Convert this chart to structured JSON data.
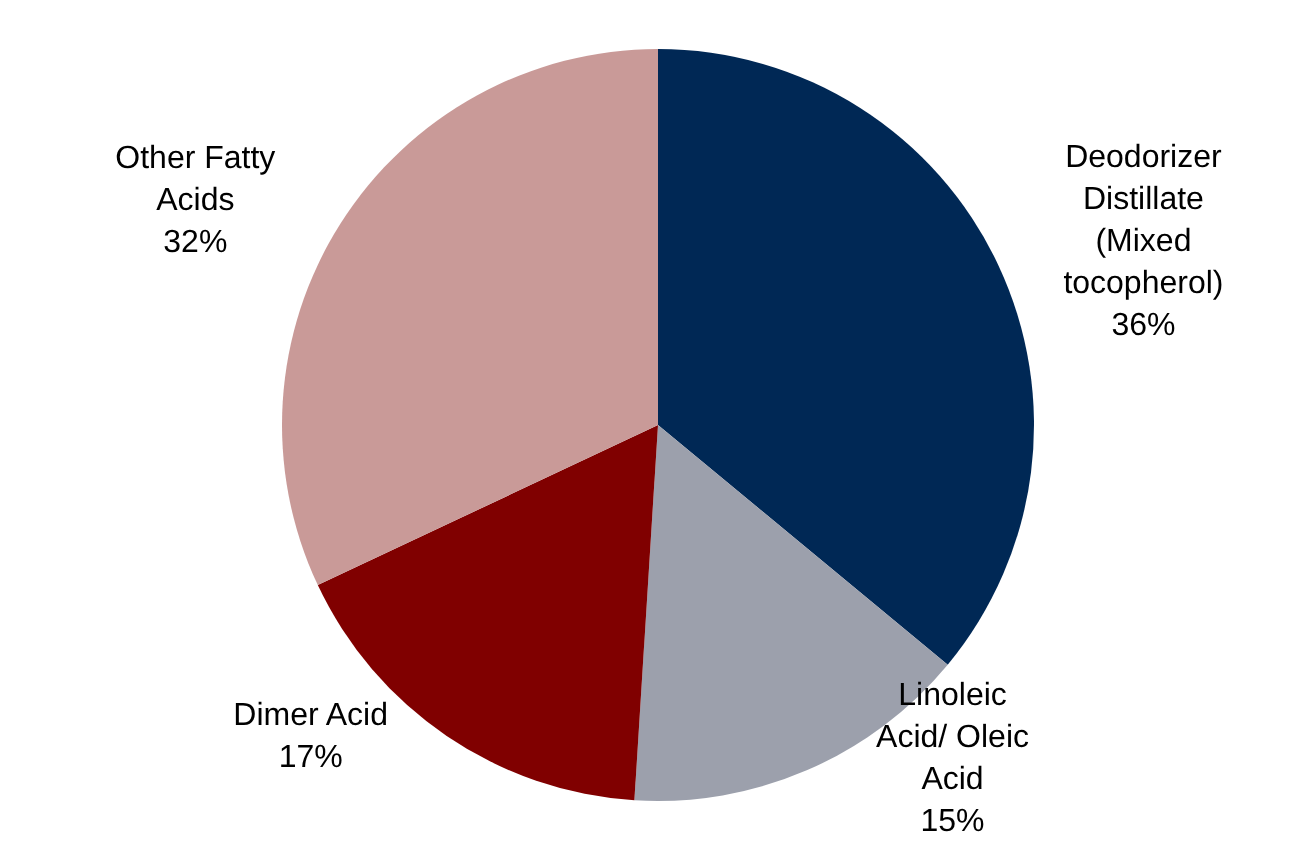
{
  "chart_data": {
    "type": "pie",
    "categories": [
      "Deodorizer Distillate (Mixed tocopherol)",
      "Linoleic Acid/ Oleic Acid",
      "Dimer Acid",
      "Other Fatty Acids"
    ],
    "values": [
      36,
      15,
      17,
      32
    ],
    "colors": [
      "#002855",
      "#9ca0ac",
      "#800000",
      "#c99a98"
    ],
    "value_labels": [
      "36%",
      "15%",
      "17%",
      "32%"
    ],
    "legend": false
  }
}
